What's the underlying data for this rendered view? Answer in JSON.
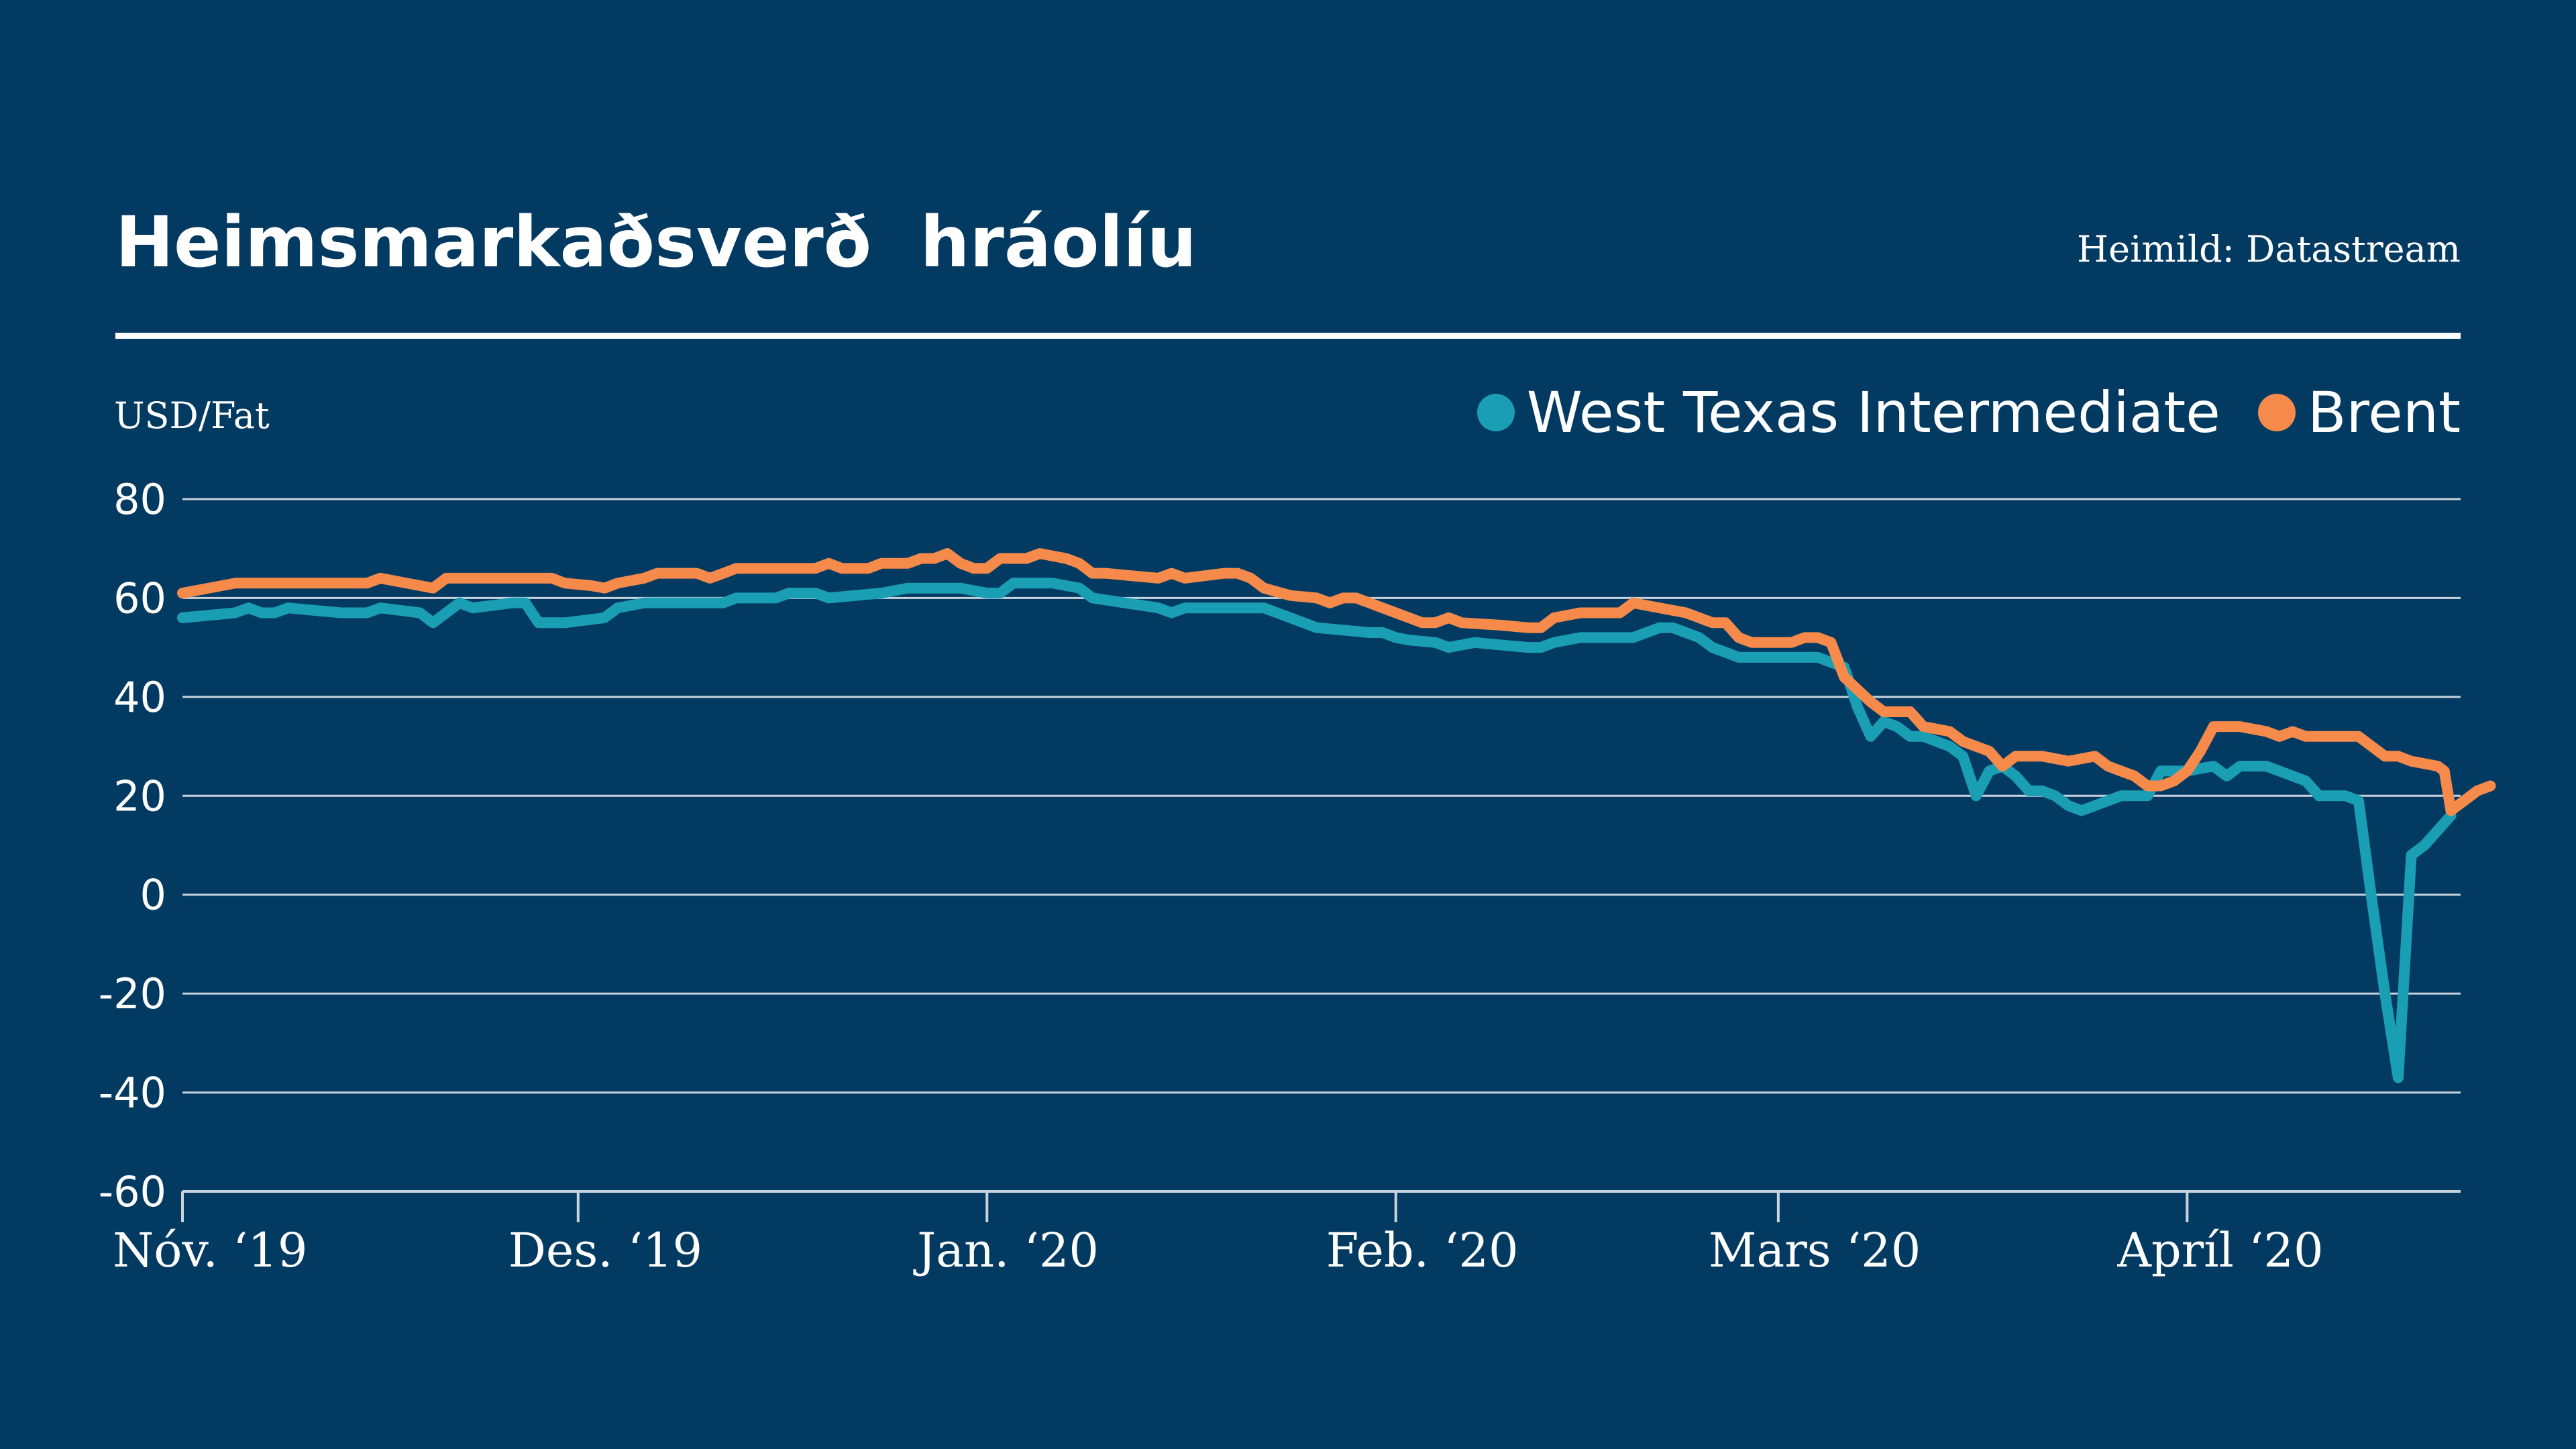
{
  "title": "Heimsmarkaðsverð  hráolíu",
  "source": "Heimild: Datastream",
  "colors": {
    "background": "#033a62",
    "wti": "#1a9eb3",
    "brent": "#f58a4b",
    "grid": "#c8d3de"
  },
  "chart_data": {
    "type": "line",
    "ylabel": "USD/Fat",
    "ylim": [
      -60,
      80
    ],
    "yticks": [
      80,
      60,
      40,
      20,
      0,
      -20,
      -40,
      -60
    ],
    "xlim": [
      0,
      173
    ],
    "xticks": [
      {
        "label": "Nóv. ‘19",
        "day": 0
      },
      {
        "label": "Des. ‘19",
        "day": 30
      },
      {
        "label": "Jan. ‘20",
        "day": 61
      },
      {
        "label": "Feb. ‘20",
        "day": 92
      },
      {
        "label": "Mars ‘20",
        "day": 121
      },
      {
        "label": "Apríl ‘20",
        "day": 152
      }
    ],
    "legend_position": "top-right",
    "grid": true,
    "series": [
      {
        "name": "West Texas Intermediate",
        "color": "#1a9eb3",
        "points": [
          [
            0,
            56
          ],
          [
            4,
            57
          ],
          [
            5,
            58
          ],
          [
            6,
            57
          ],
          [
            7,
            57
          ],
          [
            8,
            58
          ],
          [
            10,
            57.5
          ],
          [
            12,
            57
          ],
          [
            14,
            57
          ],
          [
            15,
            58
          ],
          [
            18,
            57
          ],
          [
            19,
            55
          ],
          [
            21,
            59
          ],
          [
            22,
            58
          ],
          [
            25,
            59
          ],
          [
            26,
            59
          ],
          [
            27,
            55
          ],
          [
            29,
            55
          ],
          [
            32,
            56
          ],
          [
            33,
            58
          ],
          [
            35,
            59
          ],
          [
            41,
            59
          ],
          [
            42,
            60
          ],
          [
            45,
            60
          ],
          [
            46,
            61
          ],
          [
            48,
            61
          ],
          [
            49,
            60
          ],
          [
            53,
            61
          ],
          [
            55,
            62
          ],
          [
            59,
            62
          ],
          [
            61,
            61
          ],
          [
            62,
            61
          ],
          [
            63,
            63
          ],
          [
            66,
            63
          ],
          [
            68,
            62
          ],
          [
            69,
            60
          ],
          [
            74,
            58
          ],
          [
            75,
            57
          ],
          [
            76,
            58
          ],
          [
            82,
            58
          ],
          [
            84,
            56
          ],
          [
            85,
            55
          ],
          [
            86,
            54
          ],
          [
            90,
            53
          ],
          [
            91,
            53
          ],
          [
            92,
            52
          ],
          [
            93,
            51.5
          ],
          [
            95,
            51
          ],
          [
            96,
            50
          ],
          [
            98,
            51
          ],
          [
            100,
            50.5
          ],
          [
            102,
            50
          ],
          [
            103,
            50
          ],
          [
            104,
            51
          ],
          [
            106,
            52
          ],
          [
            110,
            52
          ],
          [
            111,
            53
          ],
          [
            112,
            54
          ],
          [
            113,
            54
          ],
          [
            115,
            52
          ],
          [
            116,
            50
          ],
          [
            118,
            48
          ],
          [
            122,
            48
          ],
          [
            124,
            48
          ],
          [
            125,
            47
          ],
          [
            126,
            46
          ],
          [
            127,
            38
          ],
          [
            128,
            32
          ],
          [
            129,
            35
          ],
          [
            130,
            34
          ],
          [
            131,
            32
          ],
          [
            132,
            32
          ],
          [
            134,
            30
          ],
          [
            135,
            28
          ],
          [
            136,
            20
          ],
          [
            137,
            25
          ],
          [
            138,
            26
          ],
          [
            139,
            24
          ],
          [
            140,
            21
          ],
          [
            141,
            21
          ],
          [
            142,
            20
          ],
          [
            143,
            18
          ],
          [
            144,
            17
          ],
          [
            145,
            18
          ],
          [
            147,
            20
          ],
          [
            149,
            20
          ],
          [
            150,
            25
          ],
          [
            152,
            25
          ],
          [
            154,
            26
          ],
          [
            155,
            24
          ],
          [
            156,
            26
          ],
          [
            158,
            26
          ],
          [
            159,
            25
          ],
          [
            161,
            23
          ],
          [
            162,
            20
          ],
          [
            164,
            20
          ],
          [
            165,
            19
          ],
          [
            166,
            -1
          ],
          [
            167,
            -20
          ],
          [
            168,
            -37
          ],
          [
            169,
            8
          ],
          [
            170,
            10
          ],
          [
            172,
            16
          ]
        ]
      },
      {
        "name": "Brent",
        "color": "#f58a4b",
        "points": [
          [
            0,
            61
          ],
          [
            2,
            62
          ],
          [
            4,
            63
          ],
          [
            8,
            63
          ],
          [
            12,
            63
          ],
          [
            14,
            63
          ],
          [
            15,
            64
          ],
          [
            16,
            63.5
          ],
          [
            17,
            63
          ],
          [
            19,
            62
          ],
          [
            20,
            64
          ],
          [
            21,
            64
          ],
          [
            24,
            64
          ],
          [
            28,
            64
          ],
          [
            29,
            63
          ],
          [
            31,
            62.5
          ],
          [
            32,
            62
          ],
          [
            33,
            63
          ],
          [
            35,
            64
          ],
          [
            36,
            65
          ],
          [
            39,
            65
          ],
          [
            40,
            64
          ],
          [
            41,
            65
          ],
          [
            42,
            66
          ],
          [
            44,
            66
          ],
          [
            48,
            66
          ],
          [
            49,
            67
          ],
          [
            50,
            66
          ],
          [
            52,
            66
          ],
          [
            53,
            67
          ],
          [
            55,
            67
          ],
          [
            56,
            68
          ],
          [
            57,
            68
          ],
          [
            58,
            69
          ],
          [
            59,
            67
          ],
          [
            60,
            66
          ],
          [
            61,
            66
          ],
          [
            62,
            68
          ],
          [
            64,
            68
          ],
          [
            65,
            69
          ],
          [
            67,
            68
          ],
          [
            68,
            67
          ],
          [
            69,
            65
          ],
          [
            70,
            65
          ],
          [
            72,
            64.5
          ],
          [
            74,
            64
          ],
          [
            75,
            65
          ],
          [
            76,
            64
          ],
          [
            79,
            65
          ],
          [
            80,
            65
          ],
          [
            81,
            64
          ],
          [
            82,
            62
          ],
          [
            84,
            60.5
          ],
          [
            86,
            60
          ],
          [
            87,
            59
          ],
          [
            88,
            60
          ],
          [
            89,
            60
          ],
          [
            90,
            59
          ],
          [
            91,
            58
          ],
          [
            93,
            56
          ],
          [
            94,
            55
          ],
          [
            95,
            55
          ],
          [
            96,
            56
          ],
          [
            97,
            55
          ],
          [
            100,
            54.5
          ],
          [
            102,
            54
          ],
          [
            103,
            54
          ],
          [
            104,
            56
          ],
          [
            106,
            57
          ],
          [
            109,
            57
          ],
          [
            110,
            59
          ],
          [
            112,
            58
          ],
          [
            114,
            57
          ],
          [
            115,
            56
          ],
          [
            116,
            55
          ],
          [
            117,
            55
          ],
          [
            118,
            52
          ],
          [
            119,
            51
          ],
          [
            121,
            51
          ],
          [
            122,
            51
          ],
          [
            123,
            52
          ],
          [
            124,
            52
          ],
          [
            125,
            51
          ],
          [
            126,
            44
          ],
          [
            128,
            39
          ],
          [
            129,
            37
          ],
          [
            131,
            37
          ],
          [
            132,
            34
          ],
          [
            134,
            33
          ],
          [
            135,
            31
          ],
          [
            136,
            30
          ],
          [
            137,
            29
          ],
          [
            138,
            26
          ],
          [
            139,
            28
          ],
          [
            141,
            28
          ],
          [
            143,
            27
          ],
          [
            145,
            28
          ],
          [
            146,
            26
          ],
          [
            148,
            24
          ],
          [
            149,
            22
          ],
          [
            150,
            22
          ],
          [
            151,
            23
          ],
          [
            152,
            25
          ],
          [
            153,
            29
          ],
          [
            154,
            34
          ],
          [
            156,
            34
          ],
          [
            158,
            33
          ],
          [
            159,
            32
          ],
          [
            160,
            33
          ],
          [
            161,
            32
          ],
          [
            165,
            32
          ],
          [
            166,
            30
          ],
          [
            167,
            28
          ],
          [
            168,
            28
          ],
          [
            169,
            27
          ],
          [
            171,
            26
          ],
          [
            171.5,
            25
          ],
          [
            172,
            17
          ],
          [
            173,
            19
          ],
          [
            174,
            21
          ],
          [
            175,
            22
          ]
        ]
      }
    ]
  }
}
